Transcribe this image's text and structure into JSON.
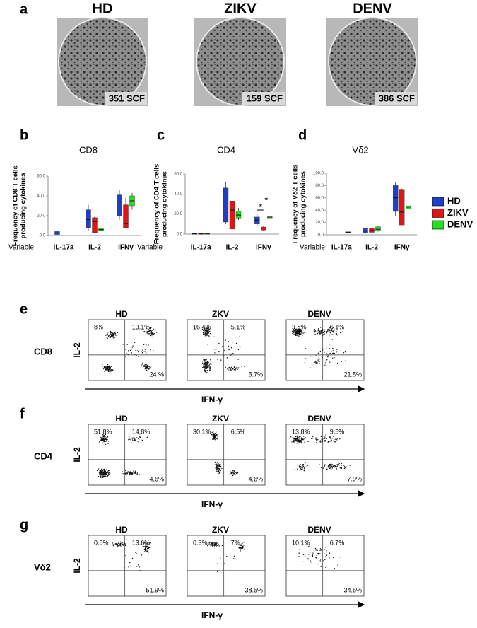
{
  "panel_a": {
    "label": "a",
    "wells": [
      {
        "title": "HD",
        "count": "351 SCF"
      },
      {
        "title": "ZIKV",
        "count": "159 SCF"
      },
      {
        "title": "DENV",
        "count": "386 SCF"
      }
    ]
  },
  "chart_data": [
    {
      "type": "box",
      "panel_label": "b",
      "title": "CD8",
      "ylabel": [
        "Frequency of CD8 T cells",
        "producing cytokines"
      ],
      "x_caption": "Variable",
      "categories": [
        "IL-17a",
        "IL-2",
        "IFNγ"
      ],
      "ylim": [
        0,
        60
      ],
      "yticks": [
        {
          "value": 0,
          "label": "0.0"
        },
        {
          "value": 20,
          "label": "20.0"
        },
        {
          "value": 40,
          "label": "40.0"
        },
        {
          "value": 60,
          "label": "60.0"
        }
      ],
      "series": [
        {
          "color": "#1f3fc4",
          "boxes": [
            {
              "min": 1,
              "q1": 1,
              "median": 2.5,
              "q3": 4,
              "max": 4
            },
            {
              "min": 5,
              "q1": 8,
              "median": 16,
              "q3": 26,
              "max": 31
            },
            {
              "min": 16,
              "q1": 20,
              "median": 34,
              "q3": 41,
              "max": 46
            }
          ]
        },
        {
          "color": "#e01515",
          "boxes": [
            null,
            {
              "min": 3,
              "q1": 3,
              "median": 14,
              "q3": 18,
              "max": 19
            },
            {
              "min": 8,
              "q1": 8,
              "median": 12,
              "q3": 31,
              "max": 38
            }
          ]
        },
        {
          "color": "#22e022",
          "boxes": [
            null,
            {
              "min": 4.5,
              "q1": 5,
              "median": 6,
              "q3": 7.5,
              "max": 8
            },
            {
              "min": 26,
              "q1": 30,
              "median": 35,
              "q3": 40,
              "max": 43
            }
          ]
        }
      ]
    },
    {
      "type": "box",
      "panel_label": "c",
      "title": "CD4",
      "ylabel": [
        "Frequency of CD4 T cells",
        "producing cytokines"
      ],
      "x_caption": "Variable",
      "categories": [
        "IL-17a",
        "IL-2",
        "IFNγ"
      ],
      "ylim": [
        0,
        60
      ],
      "yticks": [
        {
          "value": 0,
          "label": "0.0"
        },
        {
          "value": 20,
          "label": "20.0"
        },
        {
          "value": 40,
          "label": "40.0"
        },
        {
          "value": 60,
          "label": "60.0"
        }
      ],
      "annotations": [
        "*",
        "*"
      ],
      "series": [
        {
          "color": "#1f3fc4",
          "boxes": [
            {
              "min": 0.3,
              "q1": 0.3,
              "median": 0.5,
              "q3": 0.8,
              "max": 0.8
            },
            {
              "min": 10,
              "q1": 12,
              "median": 30,
              "q3": 46,
              "max": 52
            },
            {
              "min": 8,
              "q1": 10,
              "median": 14,
              "q3": 17,
              "max": 20
            }
          ]
        },
        {
          "color": "#e01515",
          "boxes": [
            {
              "min": 0.3,
              "q1": 0.3,
              "median": 0.5,
              "q3": 0.8,
              "max": 0.8
            },
            {
              "min": 5,
              "q1": 5,
              "median": 24,
              "q3": 33,
              "max": 34
            },
            {
              "min": 3,
              "q1": 4,
              "median": 6,
              "q3": 7,
              "max": 8
            }
          ]
        },
        {
          "color": "#22e022",
          "boxes": [
            {
              "min": 0.3,
              "q1": 0.3,
              "median": 0.5,
              "q3": 0.8,
              "max": 0.8
            },
            {
              "min": 14,
              "q1": 16,
              "median": 19,
              "q3": 23,
              "max": 26
            },
            {
              "min": 16.8,
              "q1": 16.8,
              "median": 17,
              "q3": 17.2,
              "max": 17.2
            }
          ]
        }
      ]
    },
    {
      "type": "box",
      "panel_label": "d",
      "title": "Vδ2",
      "ylabel": [
        "Frequency of Vδ2 T cells",
        "producing cytokines"
      ],
      "x_caption": "Variable",
      "categories": [
        "IL-17a",
        "IL-2",
        "IFNγ"
      ],
      "ylim": [
        0,
        100
      ],
      "yticks": [
        {
          "value": 0,
          "label": "0,0"
        },
        {
          "value": 20,
          "label": "20,0"
        },
        {
          "value": 40,
          "label": "40,0"
        },
        {
          "value": 60,
          "label": "60,0"
        },
        {
          "value": 80,
          "label": "80,0"
        },
        {
          "value": 100,
          "label": "100,0"
        }
      ],
      "series": [
        {
          "name": "HD",
          "color": "#1f3fc4",
          "boxes": [
            null,
            {
              "min": 2,
              "q1": 3,
              "median": 6,
              "q3": 10,
              "max": 10
            },
            {
              "min": 30,
              "q1": 38,
              "median": 60,
              "q3": 80,
              "max": 86
            }
          ]
        },
        {
          "name": "ZIKV",
          "color": "#e01515",
          "boxes": [
            null,
            {
              "min": 4,
              "q1": 4,
              "median": 7,
              "q3": 11,
              "max": 11
            },
            {
              "min": 16,
              "q1": 16,
              "median": 37,
              "q3": 74,
              "max": 75
            }
          ]
        },
        {
          "name": "DENV",
          "color": "#22e022",
          "boxes": [
            {
              "min": 3,
              "q1": 3,
              "median": 4,
              "q3": 5,
              "max": 5
            },
            {
              "min": 5,
              "q1": 6,
              "median": 9,
              "q3": 13,
              "max": 14
            },
            {
              "min": 42,
              "q1": 42,
              "median": 45,
              "q3": 47,
              "max": 47
            }
          ]
        }
      ]
    }
  ],
  "flow_panels": [
    {
      "label": "e",
      "row_label": "CD8",
      "y_axis": "IL-2",
      "x_axis": "IFN-γ",
      "plots": [
        {
          "title": "HD",
          "upper_left": "8%",
          "upper_right": "13.1%",
          "lower_right": "24 %"
        },
        {
          "title": "ZKV",
          "upper_left": "16.4%",
          "upper_right": "5.1%",
          "lower_right": "5.7%"
        },
        {
          "title": "DENV",
          "upper_left": "3.8%",
          "upper_right": "6.1%",
          "lower_right": "21.5%"
        }
      ]
    },
    {
      "label": "f",
      "row_label": "CD4",
      "y_axis": "IL-2",
      "x_axis": "IFN-γ",
      "plots": [
        {
          "title": "HD",
          "upper_left": "51,8%",
          "upper_right": "14,8%",
          "lower_right": "4,6%"
        },
        {
          "title": "ZKV",
          "upper_left": "30,1%",
          "upper_right": "6,5%",
          "lower_right": "4,6%"
        },
        {
          "title": "DENV",
          "upper_left": "13,8%",
          "upper_right": "9,5%",
          "lower_right": "7.9%"
        }
      ]
    },
    {
      "label": "g",
      "row_label": "Vδ2",
      "y_axis": "IL-2",
      "x_axis": "IFN-γ",
      "plots": [
        {
          "title": "HD",
          "upper_left": "0.5%",
          "upper_right": "13.6%",
          "lower_right": "51.9%"
        },
        {
          "title": "ZKV",
          "upper_left": "0.3%",
          "upper_right": "7%",
          "lower_right": "38.5%"
        },
        {
          "title": "DENV",
          "upper_left": "10.1%",
          "upper_right": "6.7%",
          "lower_right": "34.5%"
        }
      ]
    }
  ]
}
